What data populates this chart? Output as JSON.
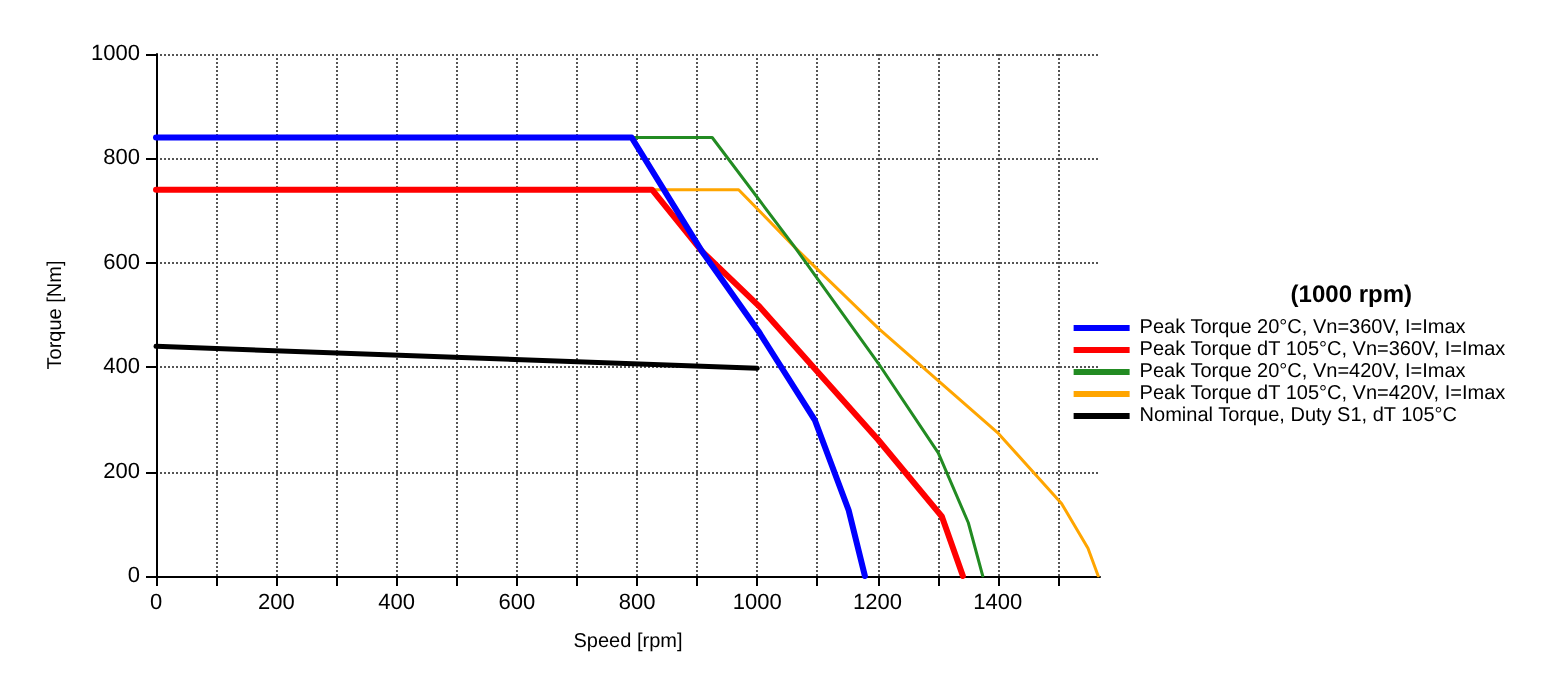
{
  "chart_data": {
    "type": "line",
    "xlabel": "Speed [rpm]",
    "ylabel": "Torque [Nm]",
    "legend_title": "(1000 rpm)",
    "legend": "right",
    "grid": true,
    "marker": "none",
    "line_style": "solid",
    "xlim": [
      0,
      1570
    ],
    "xticks": [
      0,
      {
        "value": 100,
        "label": null
      },
      200,
      {
        "value": 300,
        "label": null
      },
      400,
      {
        "value": 500,
        "label": null
      },
      600,
      {
        "value": 700,
        "label": null
      },
      800,
      {
        "value": 900,
        "label": null
      },
      1000,
      {
        "value": 1100,
        "label": null
      },
      1200,
      {
        "value": 1300,
        "label": null
      },
      1400,
      {
        "value": 1500,
        "label": null
      }
    ],
    "ylim": [
      0,
      1000
    ],
    "yticks": [
      0,
      200,
      400,
      600,
      800,
      1000
    ],
    "series": [
      {
        "name": "Peak Torque 20°C, Vn=360V, I=Imax",
        "color": "#0000ff",
        "x": [
          0,
          791,
          908,
          1002,
          1096,
          1152,
          1179
        ],
        "values": [
          840,
          840,
          622,
          469,
          298,
          126,
          0
        ]
      },
      {
        "name": "Peak Torque dT 105°C, Vn=360V, I=Imax",
        "color": "#ff0000",
        "x": [
          0,
          825,
          908,
          1002,
          1201,
          1307,
          1342
        ],
        "values": [
          740,
          740,
          622,
          518,
          261,
          114,
          0
        ]
      },
      {
        "name": "Peak Torque 20°C, Vn=420V, I=Imax",
        "color": "#228b22",
        "x": [
          791,
          925,
          1063,
          1201,
          1301,
          1351,
          1375
        ],
        "values": [
          840,
          840,
          629,
          408,
          236,
          102,
          0
        ]
      },
      {
        "name": "Peak Torque dT 105°C, Vn=420V, I=Imax",
        "color": "#ffa500",
        "x": [
          825,
          969,
          1063,
          1201,
          1401,
          1506,
          1550,
          1567
        ],
        "values": [
          740,
          740,
          629,
          475,
          273,
          139,
          53,
          0
        ]
      },
      {
        "name": "Nominal Torque, Duty S1, dT 105°C",
        "color": "#000000",
        "x": [
          0,
          1000
        ],
        "values": [
          440,
          398
        ]
      }
    ]
  }
}
